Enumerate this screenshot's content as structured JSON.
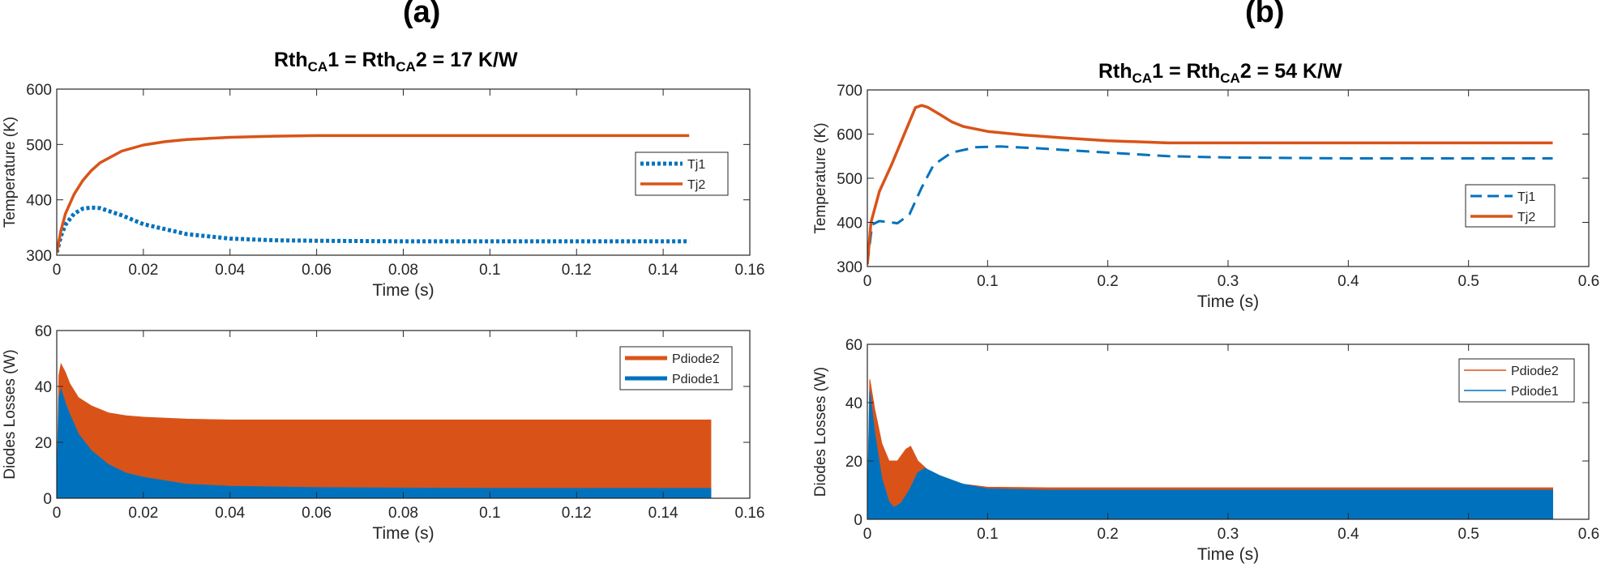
{
  "figure": {
    "label_a": "(a)",
    "label_b": "(b)",
    "title_a": {
      "pre": "Rth",
      "sub1": "CA",
      "mid": "1 = Rth",
      "sub2": "CA",
      "post": "2 = 17 K/W"
    },
    "title_b": {
      "pre": "Rth",
      "sub1": "CA",
      "mid": "1 = Rth",
      "sub2": "CA",
      "post": "2 = 54 K/W"
    }
  },
  "colors": {
    "blue": "#0072BD",
    "orange": "#D95319",
    "axis": "#262626",
    "bg": "#ffffff"
  },
  "chart_data": [
    {
      "id": "a_temp",
      "type": "line",
      "xlabel": "Time (s)",
      "ylabel": "Temperature (K)",
      "xlim": [
        0,
        0.16
      ],
      "ylim": [
        300,
        600
      ],
      "xticks": [
        0,
        0.02,
        0.04,
        0.06,
        0.08,
        0.1,
        0.12,
        0.14,
        0.16
      ],
      "xtick_labels": [
        "0",
        "0.02",
        "0.04",
        "0.06",
        "0.08",
        "0.1",
        "0.12",
        "0.14",
        "0.16"
      ],
      "yticks": [
        300,
        400,
        500,
        600
      ],
      "ytick_labels": [
        "300",
        "400",
        "500",
        "600"
      ],
      "legend": "right",
      "series": [
        {
          "name": "Tj1",
          "style": "dotted",
          "color": "#0072BD",
          "x": [
            0,
            0.001,
            0.002,
            0.004,
            0.006,
            0.008,
            0.01,
            0.015,
            0.02,
            0.03,
            0.04,
            0.05,
            0.06,
            0.08,
            0.1,
            0.12,
            0.146
          ],
          "y": [
            305,
            335,
            355,
            375,
            384,
            386,
            385,
            372,
            356,
            338,
            330,
            327,
            326,
            325,
            325,
            325,
            325
          ]
        },
        {
          "name": "Tj2",
          "style": "solid",
          "color": "#D95319",
          "x": [
            0,
            0.001,
            0.002,
            0.004,
            0.006,
            0.008,
            0.01,
            0.015,
            0.02,
            0.025,
            0.03,
            0.04,
            0.05,
            0.06,
            0.08,
            0.1,
            0.12,
            0.146
          ],
          "y": [
            305,
            345,
            375,
            410,
            435,
            453,
            467,
            488,
            499,
            505,
            509,
            513,
            515,
            516,
            516,
            516,
            516,
            516
          ]
        }
      ]
    },
    {
      "id": "a_loss",
      "type": "area",
      "xlabel": "Time (s)",
      "ylabel": "Diodes Losses (W)",
      "xlim": [
        0,
        0.16
      ],
      "ylim": [
        0,
        60
      ],
      "xticks": [
        0,
        0.02,
        0.04,
        0.06,
        0.08,
        0.1,
        0.12,
        0.14,
        0.16
      ],
      "xtick_labels": [
        "0",
        "0.02",
        "0.04",
        "0.06",
        "0.08",
        "0.1",
        "0.12",
        "0.14",
        "0.16"
      ],
      "yticks": [
        0,
        20,
        40,
        60
      ],
      "ytick_labels": [
        "0",
        "20",
        "40",
        "60"
      ],
      "legend": "top-right",
      "series": [
        {
          "name": "Pdiode2",
          "color": "#D95319",
          "x": [
            0,
            0.0005,
            0.001,
            0.002,
            0.003,
            0.005,
            0.008,
            0.012,
            0.016,
            0.02,
            0.03,
            0.04,
            0.06,
            0.1,
            0.151
          ],
          "y": [
            0,
            44,
            48,
            45,
            41,
            36,
            33,
            30.5,
            29.5,
            29,
            28.3,
            28,
            28,
            28,
            28
          ]
        },
        {
          "name": "Pdiode1",
          "color": "#0072BD",
          "x": [
            0,
            0.0005,
            0.001,
            0.002,
            0.003,
            0.005,
            0.008,
            0.012,
            0.016,
            0.02,
            0.03,
            0.04,
            0.06,
            0.1,
            0.151
          ],
          "y": [
            0,
            36,
            39,
            34,
            30,
            23,
            17,
            12,
            9,
            7.5,
            5,
            4.3,
            3.8,
            3.5,
            3.5
          ]
        }
      ]
    },
    {
      "id": "b_temp",
      "type": "line",
      "xlabel": "Time (s)",
      "ylabel": "Temperature (K)",
      "xlim": [
        0,
        0.6
      ],
      "ylim": [
        300,
        700
      ],
      "xticks": [
        0,
        0.1,
        0.2,
        0.3,
        0.4,
        0.5,
        0.6
      ],
      "xtick_labels": [
        "0",
        "0.1",
        "0.2",
        "0.3",
        "0.4",
        "0.5",
        "0.6"
      ],
      "yticks": [
        300,
        400,
        500,
        600,
        700
      ],
      "ytick_labels": [
        "300",
        "400",
        "500",
        "600",
        "700"
      ],
      "legend": "right",
      "series": [
        {
          "name": "Tj1",
          "style": "dashed",
          "color": "#0072BD",
          "x": [
            0,
            0.004,
            0.01,
            0.02,
            0.025,
            0.035,
            0.045,
            0.055,
            0.07,
            0.09,
            0.11,
            0.14,
            0.2,
            0.25,
            0.3,
            0.4,
            0.5,
            0.57
          ],
          "y": [
            305,
            395,
            403,
            400,
            398,
            418,
            478,
            530,
            558,
            570,
            572,
            568,
            558,
            550,
            547,
            545,
            545,
            545
          ]
        },
        {
          "name": "Tj2",
          "style": "solid",
          "color": "#D95319",
          "x": [
            0,
            0.003,
            0.01,
            0.02,
            0.03,
            0.04,
            0.045,
            0.05,
            0.06,
            0.07,
            0.08,
            0.1,
            0.13,
            0.16,
            0.2,
            0.25,
            0.3,
            0.4,
            0.5,
            0.57
          ],
          "y": [
            305,
            400,
            470,
            530,
            595,
            660,
            665,
            661,
            645,
            628,
            617,
            606,
            598,
            592,
            585,
            580,
            580,
            580,
            580,
            580
          ]
        }
      ]
    },
    {
      "id": "b_loss",
      "type": "area",
      "xlabel": "Time (s)",
      "ylabel": "Diodes Losses (W)",
      "xlim": [
        0,
        0.6
      ],
      "ylim": [
        0,
        60
      ],
      "xticks": [
        0,
        0.1,
        0.2,
        0.3,
        0.4,
        0.5,
        0.6
      ],
      "xtick_labels": [
        "0",
        "0.1",
        "0.2",
        "0.3",
        "0.4",
        "0.5",
        "0.6"
      ],
      "yticks": [
        0,
        20,
        40,
        60
      ],
      "ytick_labels": [
        "0",
        "20",
        "40",
        "60"
      ],
      "legend": "top-right",
      "series": [
        {
          "name": "Pdiode2",
          "color": "#D95319",
          "x": [
            0,
            0.002,
            0.006,
            0.012,
            0.018,
            0.025,
            0.032,
            0.036,
            0.042,
            0.05,
            0.065,
            0.08,
            0.1,
            0.15,
            0.3,
            0.57
          ],
          "y": [
            0,
            48,
            38,
            26,
            20,
            20,
            24,
            25,
            20,
            17,
            14,
            12,
            11,
            10.8,
            10.8,
            10.8
          ]
        },
        {
          "name": "Pdiode1",
          "color": "#0072BD",
          "x": [
            0,
            0.002,
            0.006,
            0.012,
            0.018,
            0.022,
            0.028,
            0.035,
            0.042,
            0.048,
            0.06,
            0.08,
            0.1,
            0.15,
            0.3,
            0.57
          ],
          "y": [
            0,
            44,
            30,
            14,
            6,
            4,
            5.5,
            10,
            16,
            17.5,
            15,
            12,
            10.5,
            10,
            10,
            10
          ]
        }
      ]
    }
  ]
}
